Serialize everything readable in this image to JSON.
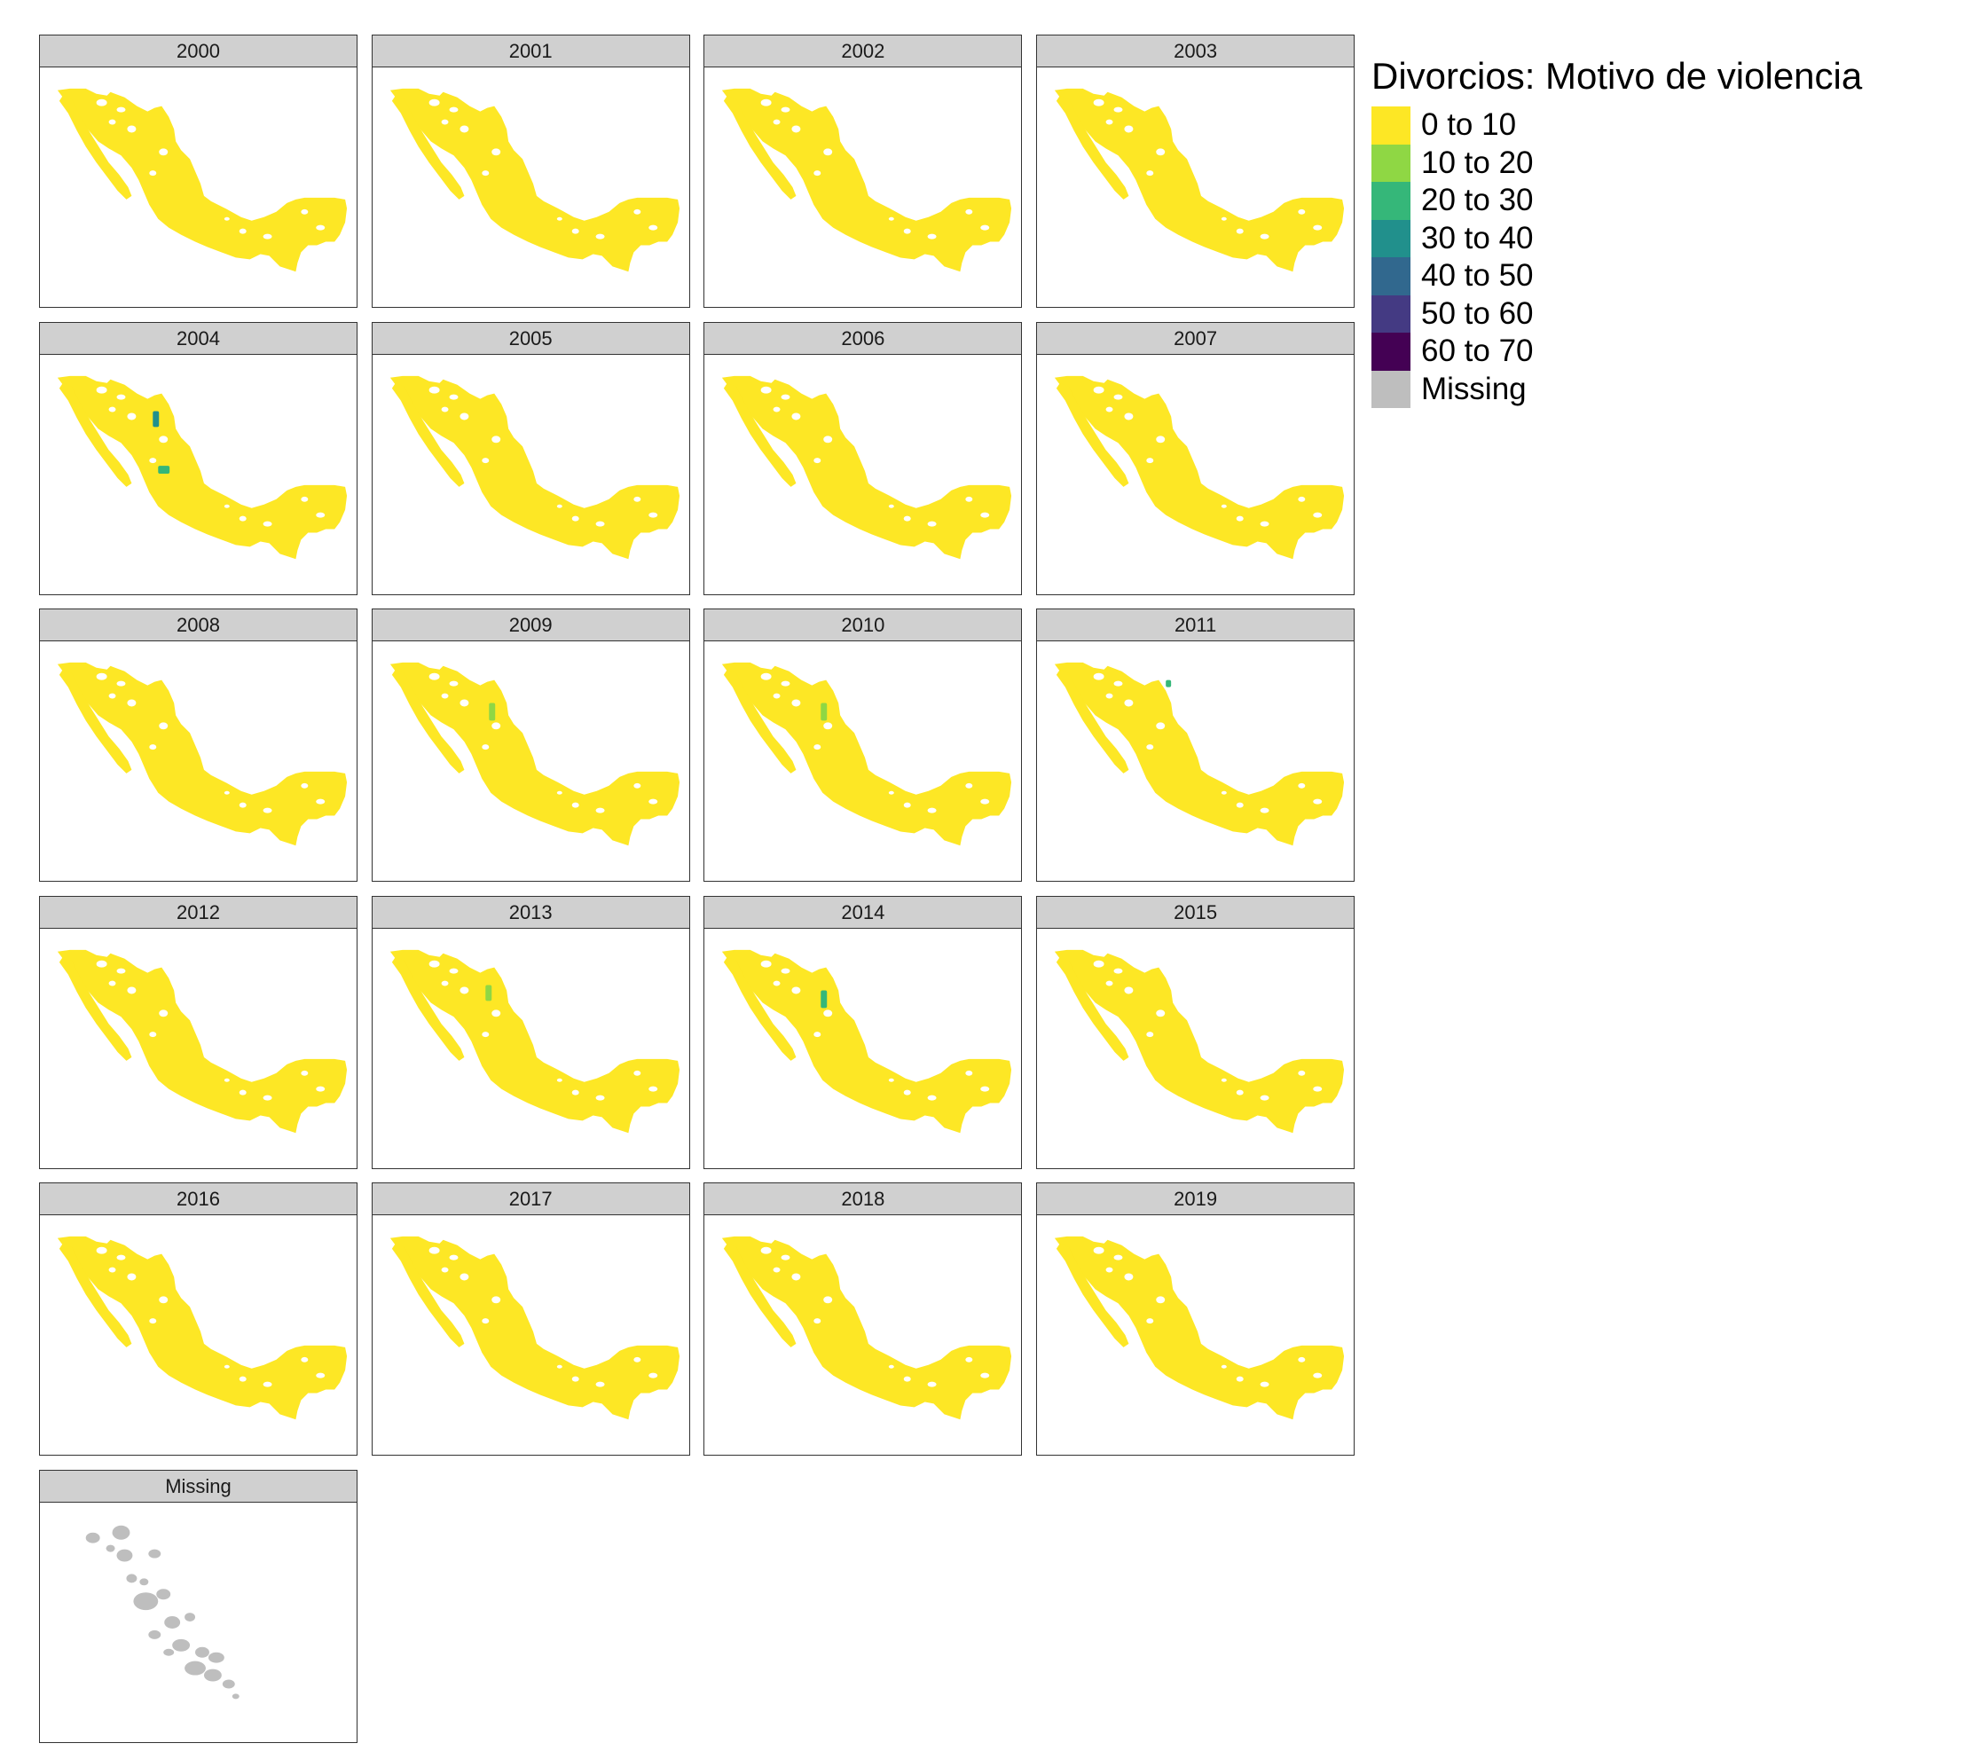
{
  "chart_data": {
    "type": "choropleth-facet",
    "title": "Divorcios: Motivo de violencia",
    "legend_position": "right",
    "legend": [
      {
        "label": "0 to 10",
        "color": "#FDE725"
      },
      {
        "label": "10 to 20",
        "color": "#8FD744"
      },
      {
        "label": "20 to 30",
        "color": "#35B779"
      },
      {
        "label": "30 to 40",
        "color": "#21908C"
      },
      {
        "label": "40 to 50",
        "color": "#31688E"
      },
      {
        "label": "50 to 60",
        "color": "#443A83"
      },
      {
        "label": "60 to 70",
        "color": "#440154"
      },
      {
        "label": "Missing",
        "color": "#BEBEBE"
      }
    ],
    "panels": [
      {
        "label": "2000",
        "highlights": []
      },
      {
        "label": "2001",
        "highlights": []
      },
      {
        "label": "2002",
        "highlights": []
      },
      {
        "label": "2003",
        "highlights": []
      },
      {
        "label": "2004",
        "highlights": [
          {
            "region": "chihuahua-north",
            "range": "30 to 40"
          },
          {
            "region": "sinaloa-sierra",
            "range": "20 to 30"
          }
        ]
      },
      {
        "label": "2005",
        "highlights": []
      },
      {
        "label": "2006",
        "highlights": []
      },
      {
        "label": "2007",
        "highlights": []
      },
      {
        "label": "2008",
        "highlights": []
      },
      {
        "label": "2009",
        "highlights": [
          {
            "region": "chihuahua-central",
            "range": "10 to 20"
          }
        ]
      },
      {
        "label": "2010",
        "highlights": [
          {
            "region": "chihuahua-central",
            "range": "10 to 20"
          }
        ]
      },
      {
        "label": "2011",
        "highlights": [
          {
            "region": "chihuahua-northeast",
            "range": "20 to 30"
          }
        ]
      },
      {
        "label": "2012",
        "highlights": []
      },
      {
        "label": "2013",
        "highlights": [
          {
            "region": "chihuahua-north",
            "range": "10 to 20"
          }
        ]
      },
      {
        "label": "2014",
        "highlights": [
          {
            "region": "chihuahua-central",
            "range": "20 to 30"
          }
        ]
      },
      {
        "label": "2015",
        "highlights": []
      },
      {
        "label": "2016",
        "highlights": []
      },
      {
        "label": "2017",
        "highlights": []
      },
      {
        "label": "2018",
        "highlights": []
      },
      {
        "label": "2019",
        "highlights": []
      },
      {
        "label": "Missing",
        "highlights": [],
        "missing": true
      }
    ]
  }
}
